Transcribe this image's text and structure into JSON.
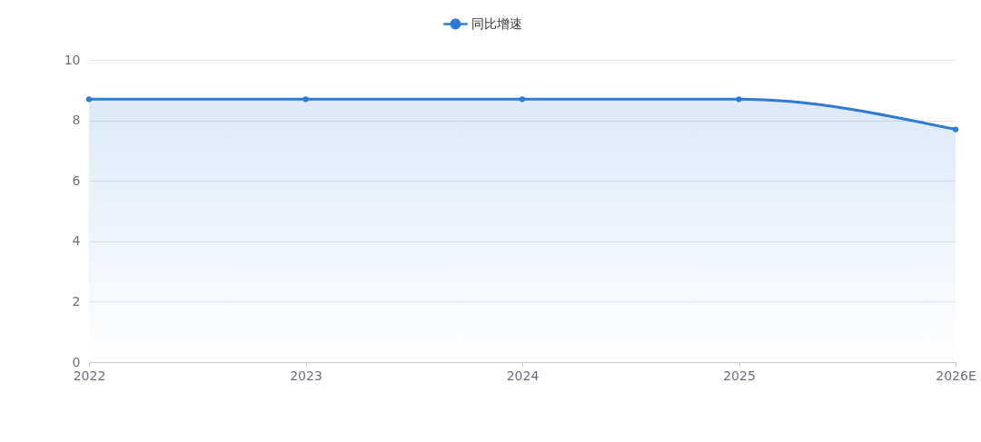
{
  "chart_data": {
    "type": "area",
    "categories": [
      "2022",
      "2023",
      "2024",
      "2025",
      "2026E"
    ],
    "series": [
      {
        "name": "同比增速",
        "color": "#2f7bd2",
        "values": [
          8.7,
          8.7,
          8.7,
          8.7,
          7.7
        ]
      }
    ],
    "ylim": [
      0,
      10
    ],
    "yticks": [
      0,
      2,
      4,
      6,
      8,
      10
    ],
    "grid": "y",
    "legend": "top",
    "marker": "circle",
    "line_style": "solid"
  }
}
